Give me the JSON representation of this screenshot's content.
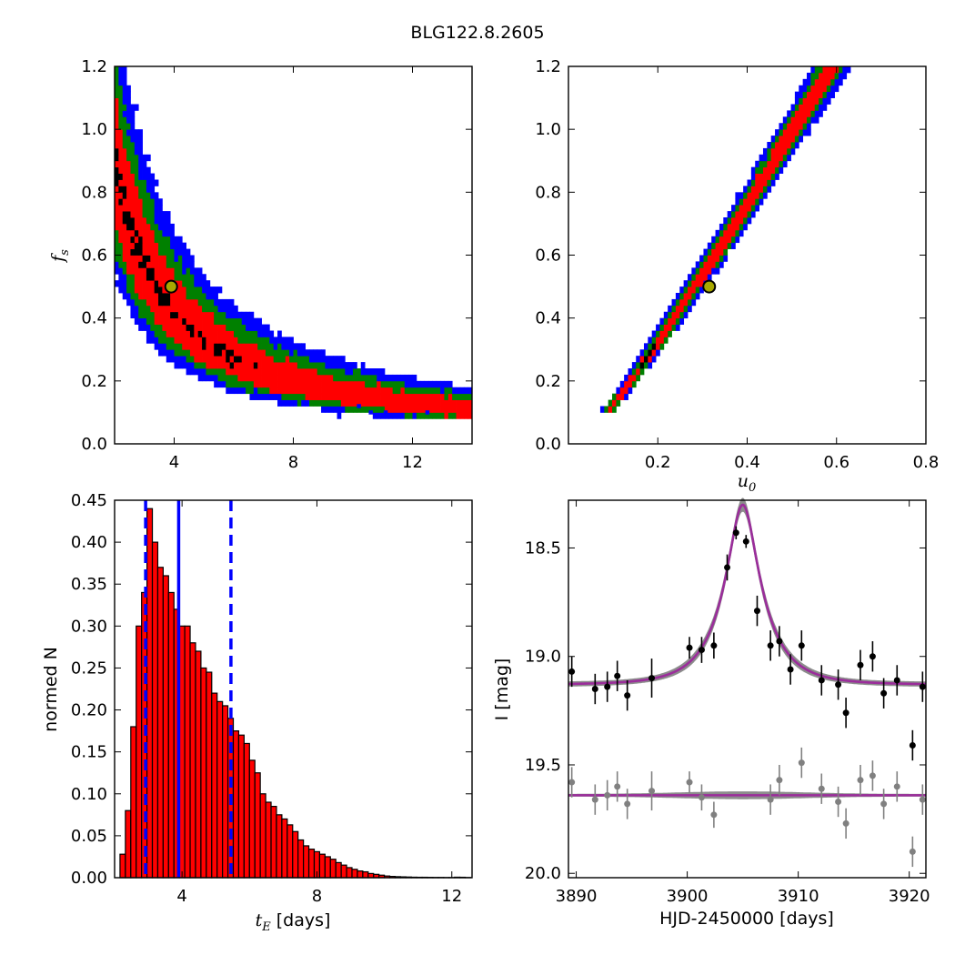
{
  "figure_title": "BLG122.8.2605",
  "chart_data": [
    {
      "panel": "fs-vs-tE",
      "type": "heatmap",
      "title": "",
      "xlabel": "",
      "ylabel_sym": "f",
      "ylabel_sub": "s",
      "xlim": [
        2,
        14
      ],
      "ylim": [
        0.0,
        1.2
      ],
      "xticks": [
        "4",
        "8",
        "12"
      ],
      "xtick_values": [
        4,
        8,
        12
      ],
      "yticks": [
        "0.0",
        "0.2",
        "0.4",
        "0.6",
        "0.8",
        "1.0",
        "1.2"
      ],
      "ytick_values": [
        0.0,
        0.2,
        0.4,
        0.6,
        0.8,
        1.0,
        1.2
      ],
      "band": {
        "a": 1.78,
        "p": 0.97,
        "width_dex": [
          0.05,
          0.1,
          0.15,
          0.2
        ]
      },
      "stray_points": [
        [
          10.6,
          0.1
        ],
        [
          11.1,
          0.1
        ],
        [
          12.5,
          0.1
        ],
        [
          10.2,
          0.12
        ]
      ],
      "best_fit": {
        "x": 3.9,
        "y": 0.5
      },
      "colors": {
        "outer": "#0000ff",
        "mid2": "#008000",
        "mid1": "#ff0000",
        "core": "#000000",
        "marker_fill": "#a8a800",
        "marker_edge": "#000000"
      }
    },
    {
      "panel": "fs-vs-u0",
      "type": "heatmap",
      "title": "",
      "xlabel_sym": "u",
      "xlabel_sub": "0",
      "ylabel": "",
      "xlim": [
        0.0,
        0.8
      ],
      "ylim": [
        0.0,
        1.2
      ],
      "xticks": [
        "0.2",
        "0.4",
        "0.6",
        "0.8"
      ],
      "xtick_values": [
        0.2,
        0.4,
        0.6,
        0.8
      ],
      "yticks": [
        "0.0",
        "0.2",
        "0.4",
        "0.6",
        "0.8",
        "1.0",
        "1.2"
      ],
      "ytick_values": [
        0.0,
        0.2,
        0.4,
        0.6,
        0.8,
        1.0,
        1.2
      ],
      "band": {
        "u_at_min": 0.085,
        "fs_min": 0.1,
        "u_at_max": 0.59,
        "fs_max": 1.2,
        "half_width": [
          0.006,
          0.013,
          0.021,
          0.03
        ]
      },
      "best_fit": {
        "x": 0.315,
        "y": 0.5
      },
      "colors": {
        "outer": "#0000ff",
        "mid2": "#008000",
        "mid1": "#ff0000",
        "core": "#000000",
        "marker_fill": "#a8a800",
        "marker_edge": "#000000"
      }
    },
    {
      "panel": "tE-histogram",
      "type": "bar",
      "title": "",
      "xlabel_sym": "t",
      "xlabel_sub": "E",
      "xlabel_unit": "[days]",
      "ylabel": "normed N",
      "xlim": [
        2,
        12.6
      ],
      "ylim": [
        0.0,
        0.45
      ],
      "xticks": [
        "4",
        "8",
        "12"
      ],
      "xtick_values": [
        4,
        8,
        12
      ],
      "yticks": [
        "0.00",
        "0.05",
        "0.10",
        "0.15",
        "0.20",
        "0.25",
        "0.30",
        "0.35",
        "0.40",
        "0.45"
      ],
      "ytick_values": [
        0.0,
        0.05,
        0.1,
        0.15,
        0.2,
        0.25,
        0.3,
        0.35,
        0.4,
        0.45
      ],
      "bin_start": 2.0,
      "bin_width": 0.16,
      "values": [
        0.0,
        0.028,
        0.08,
        0.18,
        0.3,
        0.34,
        0.44,
        0.4,
        0.37,
        0.36,
        0.34,
        0.32,
        0.3,
        0.3,
        0.28,
        0.27,
        0.25,
        0.245,
        0.22,
        0.21,
        0.205,
        0.19,
        0.175,
        0.17,
        0.16,
        0.14,
        0.125,
        0.1,
        0.09,
        0.085,
        0.075,
        0.07,
        0.063,
        0.055,
        0.045,
        0.038,
        0.034,
        0.031,
        0.028,
        0.025,
        0.022,
        0.018,
        0.015,
        0.012,
        0.01,
        0.008,
        0.007,
        0.005,
        0.004,
        0.003,
        0.002,
        0.0015,
        0.0012,
        0.001,
        0.0008,
        0.0006,
        0.0005,
        0.0005,
        0.0004,
        0.0003,
        0.0003,
        0.0002,
        0.0002,
        0.0006,
        0.0005,
        0.0002
      ],
      "median": 3.9,
      "lower": 2.92,
      "upper": 5.45,
      "colors": {
        "bar": "#ff0000",
        "edge": "#000000",
        "lines": "#0000ff"
      }
    },
    {
      "panel": "light-curve",
      "type": "scatter",
      "title": "",
      "xlabel": "HJD-2450000 [days]",
      "ylabel": "I [mag]",
      "xlim": [
        3889.3,
        3921.5
      ],
      "ylim": [
        20.02,
        18.28
      ],
      "xticks": [
        "3890",
        "3900",
        "3910",
        "3920"
      ],
      "xtick_values": [
        3890,
        3900,
        3910,
        3920
      ],
      "yticks": [
        "18.5",
        "19.0",
        "19.5",
        "20.0"
      ],
      "ytick_values": [
        18.5,
        19.0,
        19.5,
        20.0
      ],
      "model": {
        "t0": 3905.0,
        "tE": 3.9,
        "u0": 0.315,
        "fs": 0.5,
        "I_base": 19.13
      },
      "residual_baseline": 19.64,
      "data": [
        [
          3889.6,
          19.07,
          0.07
        ],
        [
          3891.7,
          19.15,
          0.07
        ],
        [
          3892.8,
          19.14,
          0.07
        ],
        [
          3893.7,
          19.09,
          0.07
        ],
        [
          3894.6,
          19.18,
          0.07
        ],
        [
          3896.8,
          19.1,
          0.09
        ],
        [
          3900.2,
          18.96,
          0.05
        ],
        [
          3901.3,
          18.97,
          0.06
        ],
        [
          3902.4,
          18.95,
          0.06
        ],
        [
          3903.6,
          18.59,
          0.06
        ],
        [
          3904.4,
          18.43,
          0.03
        ],
        [
          3905.3,
          18.47,
          0.03
        ],
        [
          3906.3,
          18.79,
          0.07
        ],
        [
          3907.5,
          18.95,
          0.07
        ],
        [
          3908.3,
          18.93,
          0.07
        ],
        [
          3909.3,
          19.06,
          0.07
        ],
        [
          3910.3,
          18.95,
          0.07
        ],
        [
          3912.1,
          19.11,
          0.07
        ],
        [
          3913.6,
          19.13,
          0.07
        ],
        [
          3914.3,
          19.26,
          0.07
        ],
        [
          3915.6,
          19.04,
          0.07
        ],
        [
          3916.7,
          19.0,
          0.07
        ],
        [
          3917.7,
          19.17,
          0.07
        ],
        [
          3918.9,
          19.11,
          0.07
        ],
        [
          3920.3,
          19.41,
          0.07
        ],
        [
          3921.2,
          19.14,
          0.07
        ]
      ],
      "residuals": [
        [
          3889.6,
          19.58,
          0.07
        ],
        [
          3891.7,
          19.66,
          0.07
        ],
        [
          3892.8,
          19.64,
          0.07
        ],
        [
          3893.7,
          19.6,
          0.07
        ],
        [
          3894.6,
          19.68,
          0.07
        ],
        [
          3896.8,
          19.62,
          0.09
        ],
        [
          3900.2,
          19.58,
          0.05
        ],
        [
          3901.3,
          19.65,
          0.06
        ],
        [
          3902.4,
          19.73,
          0.06
        ],
        [
          3907.5,
          19.66,
          0.07
        ],
        [
          3908.3,
          19.57,
          0.07
        ],
        [
          3910.3,
          19.49,
          0.07
        ],
        [
          3912.1,
          19.61,
          0.07
        ],
        [
          3913.6,
          19.67,
          0.07
        ],
        [
          3914.3,
          19.77,
          0.07
        ],
        [
          3915.6,
          19.57,
          0.07
        ],
        [
          3916.7,
          19.55,
          0.07
        ],
        [
          3917.7,
          19.68,
          0.07
        ],
        [
          3918.9,
          19.6,
          0.07
        ],
        [
          3920.3,
          19.9,
          0.07
        ],
        [
          3921.2,
          19.66,
          0.07
        ]
      ],
      "colors": {
        "points": "#000000",
        "residual_points": "#808080",
        "model_band": "#8c8c8c",
        "model_line": "#9b2d9b"
      }
    }
  ]
}
